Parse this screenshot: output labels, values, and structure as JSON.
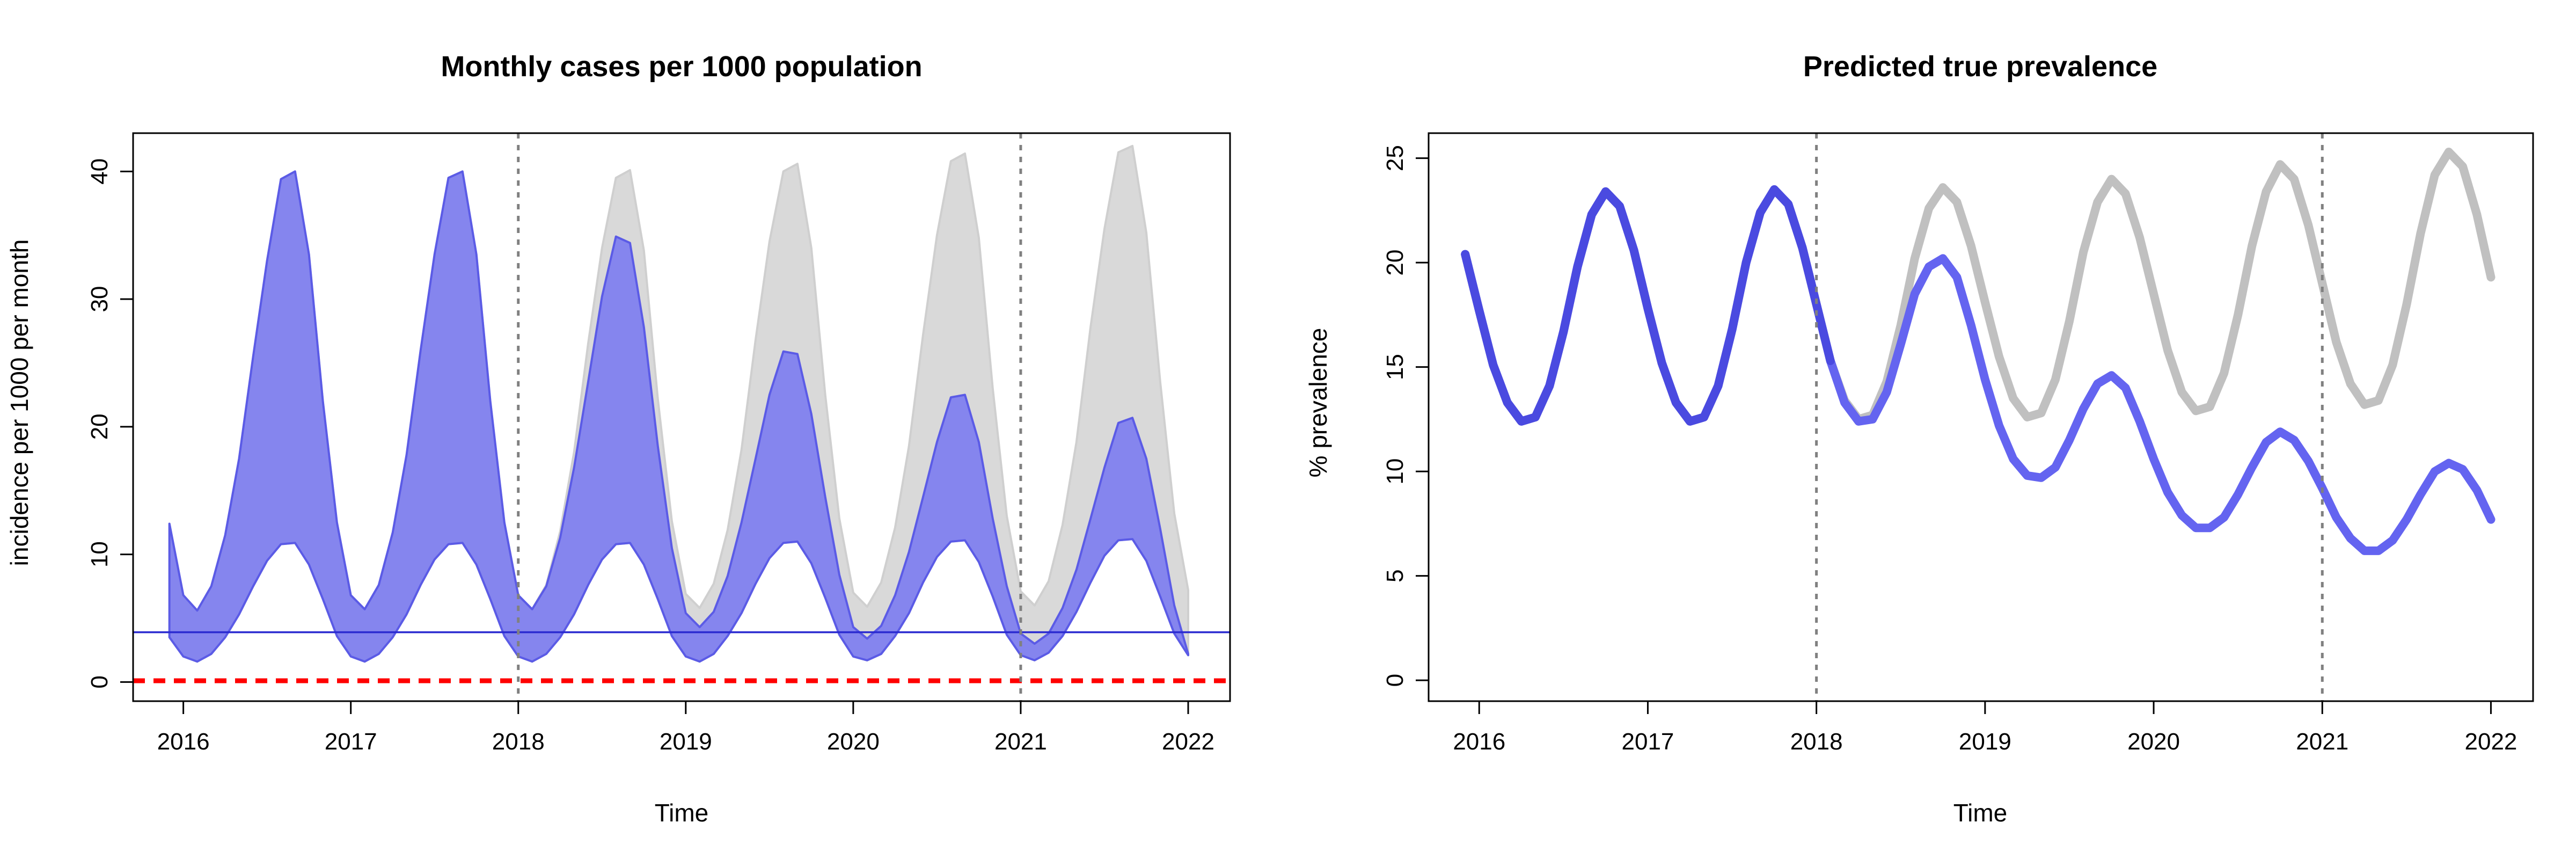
{
  "chart_data": [
    {
      "type": "area",
      "title": "Monthly cases per 1000 population",
      "xlabel": "Time",
      "ylabel": "incidence per 1000 per month",
      "xlim": [
        2015.7,
        2022.25
      ],
      "ylim": [
        -1.5,
        43
      ],
      "xticks": [
        2016,
        2017,
        2018,
        2019,
        2020,
        2021,
        2022
      ],
      "yticks": [
        0,
        10,
        20,
        30,
        40
      ],
      "grid": false,
      "vlines": [
        2018,
        2021
      ],
      "hlines": [
        {
          "value": 3.9,
          "color": "#2a2ad0",
          "style": "solid"
        },
        {
          "value": 0.1,
          "color": "#ff0000",
          "style": "dashed"
        }
      ],
      "series": [
        {
          "color": "#d9d9d9",
          "x": [
            2015.917,
            2016.0,
            2016.083,
            2016.167,
            2016.25,
            2016.333,
            2016.417,
            2016.5,
            2016.583,
            2016.667,
            2016.75,
            2016.833,
            2016.917,
            2017.0,
            2017.083,
            2017.167,
            2017.25,
            2017.333,
            2017.417,
            2017.5,
            2017.583,
            2017.667,
            2017.75,
            2017.833,
            2017.917,
            2018.0,
            2018.083,
            2018.167,
            2018.25,
            2018.333,
            2018.417,
            2018.5,
            2018.583,
            2018.667,
            2018.75,
            2018.833,
            2018.917,
            2019.0,
            2019.083,
            2019.167,
            2019.25,
            2019.333,
            2019.417,
            2019.5,
            2019.583,
            2019.667,
            2019.75,
            2019.833,
            2019.917,
            2020.0,
            2020.083,
            2020.167,
            2020.25,
            2020.333,
            2020.417,
            2020.5,
            2020.583,
            2020.667,
            2020.75,
            2020.833,
            2020.917,
            2021.0,
            2021.083,
            2021.167,
            2021.25,
            2021.333,
            2021.417,
            2021.5,
            2021.583,
            2021.667,
            2021.75,
            2021.833,
            2021.917,
            2022.0
          ],
          "upper": [
            12.4,
            6.8,
            5.6,
            7.5,
            11.5,
            17.5,
            25.5,
            33.0,
            39.4,
            40.0,
            33.5,
            22.0,
            12.5,
            6.8,
            5.7,
            7.6,
            11.7,
            17.8,
            26.0,
            33.5,
            39.5,
            40.0,
            33.5,
            22.0,
            12.5,
            6.8,
            5.7,
            7.6,
            11.8,
            18.0,
            26.5,
            34.0,
            39.5,
            40.1,
            33.8,
            22.2,
            12.6,
            6.9,
            5.8,
            7.7,
            11.9,
            18.2,
            26.8,
            34.5,
            40.0,
            40.6,
            34.0,
            22.5,
            12.8,
            7.0,
            5.9,
            7.8,
            12.1,
            18.5,
            27.2,
            35.0,
            40.8,
            41.4,
            34.8,
            23.0,
            13.0,
            7.1,
            6.0,
            7.9,
            12.3,
            18.8,
            27.8,
            35.5,
            41.5,
            42.0,
            35.2,
            23.5,
            13.2,
            7.2
          ],
          "lower": [
            3.5,
            2.0,
            1.6,
            2.2,
            3.5,
            5.3,
            7.5,
            9.5,
            10.8,
            10.9,
            9.2,
            6.5,
            3.6,
            2.0,
            1.6,
            2.2,
            3.5,
            5.3,
            7.6,
            9.6,
            10.8,
            10.9,
            9.2,
            6.5,
            3.6,
            2.0,
            1.6,
            2.2,
            3.5,
            5.3,
            7.6,
            9.6,
            10.8,
            10.9,
            9.2,
            6.5,
            3.6,
            2.0,
            1.6,
            2.2,
            3.6,
            5.4,
            7.7,
            9.7,
            10.9,
            11.0,
            9.3,
            6.6,
            3.7,
            2.0,
            1.7,
            2.2,
            3.6,
            5.4,
            7.8,
            9.8,
            11.0,
            11.1,
            9.4,
            6.7,
            3.7,
            2.1,
            1.7,
            2.3,
            3.6,
            5.5,
            7.8,
            9.9,
            11.1,
            11.2,
            9.5,
            6.7,
            3.8,
            2.1
          ]
        },
        {
          "color": "#8585ee",
          "x": [
            2015.917,
            2016.0,
            2016.083,
            2016.167,
            2016.25,
            2016.333,
            2016.417,
            2016.5,
            2016.583,
            2016.667,
            2016.75,
            2016.833,
            2016.917,
            2017.0,
            2017.083,
            2017.167,
            2017.25,
            2017.333,
            2017.417,
            2017.5,
            2017.583,
            2017.667,
            2017.75,
            2017.833,
            2017.917,
            2018.0,
            2018.083,
            2018.167,
            2018.25,
            2018.333,
            2018.417,
            2018.5,
            2018.583,
            2018.667,
            2018.75,
            2018.833,
            2018.917,
            2019.0,
            2019.083,
            2019.167,
            2019.25,
            2019.333,
            2019.417,
            2019.5,
            2019.583,
            2019.667,
            2019.75,
            2019.833,
            2019.917,
            2020.0,
            2020.083,
            2020.167,
            2020.25,
            2020.333,
            2020.417,
            2020.5,
            2020.583,
            2020.667,
            2020.75,
            2020.833,
            2020.917,
            2021.0,
            2021.083,
            2021.167,
            2021.25,
            2021.333,
            2021.417,
            2021.5,
            2021.583,
            2021.667,
            2021.75,
            2021.833,
            2021.917,
            2022.0
          ],
          "upper": [
            12.4,
            6.8,
            5.6,
            7.5,
            11.5,
            17.5,
            25.5,
            33.0,
            39.4,
            40.0,
            33.5,
            22.0,
            12.5,
            6.8,
            5.7,
            7.6,
            11.7,
            17.8,
            26.0,
            33.5,
            39.5,
            40.0,
            33.5,
            22.0,
            12.5,
            6.8,
            5.7,
            7.5,
            11.3,
            16.8,
            23.5,
            30.2,
            34.9,
            34.4,
            27.8,
            18.5,
            10.5,
            5.4,
            4.3,
            5.5,
            8.3,
            12.5,
            17.5,
            22.5,
            25.9,
            25.7,
            21.0,
            14.5,
            8.4,
            4.3,
            3.4,
            4.4,
            6.8,
            10.2,
            14.5,
            18.8,
            22.3,
            22.5,
            18.8,
            12.8,
            7.5,
            3.8,
            3.0,
            3.8,
            5.8,
            8.8,
            12.8,
            16.8,
            20.3,
            20.7,
            17.5,
            12.0,
            6.0,
            2.2
          ],
          "lower": [
            3.5,
            2.0,
            1.6,
            2.2,
            3.5,
            5.3,
            7.5,
            9.5,
            10.8,
            10.9,
            9.2,
            6.5,
            3.6,
            2.0,
            1.6,
            2.2,
            3.5,
            5.3,
            7.6,
            9.6,
            10.8,
            10.9,
            9.2,
            6.5,
            3.6,
            2.0,
            1.6,
            2.2,
            3.5,
            5.3,
            7.6,
            9.6,
            10.8,
            10.9,
            9.2,
            6.5,
            3.6,
            2.0,
            1.6,
            2.2,
            3.6,
            5.4,
            7.7,
            9.7,
            10.9,
            11.0,
            9.3,
            6.6,
            3.7,
            2.0,
            1.7,
            2.2,
            3.6,
            5.4,
            7.8,
            9.8,
            11.0,
            11.1,
            9.4,
            6.7,
            3.7,
            2.1,
            1.7,
            2.3,
            3.6,
            5.5,
            7.8,
            9.9,
            11.1,
            11.2,
            9.5,
            6.7,
            3.8,
            2.1
          ]
        }
      ]
    },
    {
      "type": "line",
      "title": "Predicted true prevalence",
      "xlabel": "Time",
      "ylabel": "% prevalence",
      "xlim": [
        2015.7,
        2022.25
      ],
      "ylim": [
        -1,
        26.2
      ],
      "xticks": [
        2016,
        2017,
        2018,
        2019,
        2020,
        2021,
        2022
      ],
      "yticks": [
        0,
        5,
        10,
        15,
        20,
        25
      ],
      "grid": false,
      "vlines": [
        2018,
        2021
      ],
      "series": [
        {
          "color": "#c0c0c0",
          "x": [
            2015.917,
            2016.0,
            2016.083,
            2016.167,
            2016.25,
            2016.333,
            2016.417,
            2016.5,
            2016.583,
            2016.667,
            2016.75,
            2016.833,
            2016.917,
            2017.0,
            2017.083,
            2017.167,
            2017.25,
            2017.333,
            2017.417,
            2017.5,
            2017.583,
            2017.667,
            2017.75,
            2017.833,
            2017.917,
            2018.0,
            2018.083,
            2018.167,
            2018.25,
            2018.333,
            2018.417,
            2018.5,
            2018.583,
            2018.667,
            2018.75,
            2018.833,
            2018.917,
            2019.0,
            2019.083,
            2019.167,
            2019.25,
            2019.333,
            2019.417,
            2019.5,
            2019.583,
            2019.667,
            2019.75,
            2019.833,
            2019.917,
            2020.0,
            2020.083,
            2020.167,
            2020.25,
            2020.333,
            2020.417,
            2020.5,
            2020.583,
            2020.667,
            2020.75,
            2020.833,
            2020.917,
            2021.0,
            2021.083,
            2021.167,
            2021.25,
            2021.333,
            2021.417,
            2021.5,
            2021.583,
            2021.667,
            2021.75,
            2021.833,
            2021.917,
            2022.0
          ],
          "values": [
            20.4,
            17.7,
            15.1,
            13.3,
            12.4,
            12.6,
            14.1,
            16.7,
            19.8,
            22.3,
            23.4,
            22.7,
            20.6,
            17.8,
            15.2,
            13.3,
            12.4,
            12.6,
            14.1,
            16.8,
            20.0,
            22.4,
            23.5,
            22.8,
            20.7,
            18.0,
            15.3,
            13.4,
            12.5,
            12.7,
            14.3,
            17.0,
            20.2,
            22.6,
            23.6,
            22.9,
            20.8,
            18.1,
            15.5,
            13.5,
            12.6,
            12.8,
            14.4,
            17.2,
            20.5,
            22.9,
            24.0,
            23.3,
            21.2,
            18.5,
            15.8,
            13.8,
            12.9,
            13.1,
            14.7,
            17.5,
            20.8,
            23.4,
            24.7,
            24.0,
            21.8,
            19.0,
            16.2,
            14.2,
            13.2,
            13.4,
            15.1,
            18.0,
            21.4,
            24.2,
            25.3,
            24.6,
            22.3,
            19.3
          ]
        },
        {
          "color": "#6464f0",
          "x": [
            2015.917,
            2016.0,
            2016.083,
            2016.167,
            2016.25,
            2016.333,
            2016.417,
            2016.5,
            2016.583,
            2016.667,
            2016.75,
            2016.833,
            2016.917,
            2017.0,
            2017.083,
            2017.167,
            2017.25,
            2017.333,
            2017.417,
            2017.5,
            2017.583,
            2017.667,
            2017.75,
            2017.833,
            2017.917,
            2018.0,
            2018.083,
            2018.167,
            2018.25,
            2018.333,
            2018.417,
            2018.5,
            2018.583,
            2018.667,
            2018.75,
            2018.833,
            2018.917,
            2019.0,
            2019.083,
            2019.167,
            2019.25,
            2019.333,
            2019.417,
            2019.5,
            2019.583,
            2019.667,
            2019.75,
            2019.833,
            2019.917,
            2020.0,
            2020.083,
            2020.167,
            2020.25,
            2020.333,
            2020.417,
            2020.5,
            2020.583,
            2020.667,
            2020.75,
            2020.833,
            2020.917,
            2021.0,
            2021.083,
            2021.167,
            2021.25,
            2021.333,
            2021.417,
            2021.5,
            2021.583,
            2021.667,
            2021.75,
            2021.833,
            2021.917,
            2022.0
          ],
          "values": [
            20.4,
            17.7,
            15.1,
            13.3,
            12.4,
            12.6,
            14.1,
            16.7,
            19.8,
            22.3,
            23.4,
            22.7,
            20.6,
            17.8,
            15.2,
            13.3,
            12.4,
            12.6,
            14.1,
            16.8,
            20.0,
            22.4,
            23.5,
            22.8,
            20.7,
            18.0,
            15.3,
            13.3,
            12.4,
            12.5,
            13.8,
            16.1,
            18.5,
            19.8,
            20.2,
            19.3,
            17.0,
            14.4,
            12.2,
            10.6,
            9.8,
            9.7,
            10.2,
            11.5,
            13.0,
            14.2,
            14.6,
            14.0,
            12.4,
            10.6,
            9.0,
            7.9,
            7.3,
            7.3,
            7.8,
            8.9,
            10.2,
            11.4,
            11.9,
            11.5,
            10.5,
            9.2,
            7.8,
            6.8,
            6.2,
            6.2,
            6.7,
            7.7,
            8.9,
            10.0,
            10.4,
            10.1,
            9.1,
            7.7
          ]
        }
      ]
    }
  ]
}
